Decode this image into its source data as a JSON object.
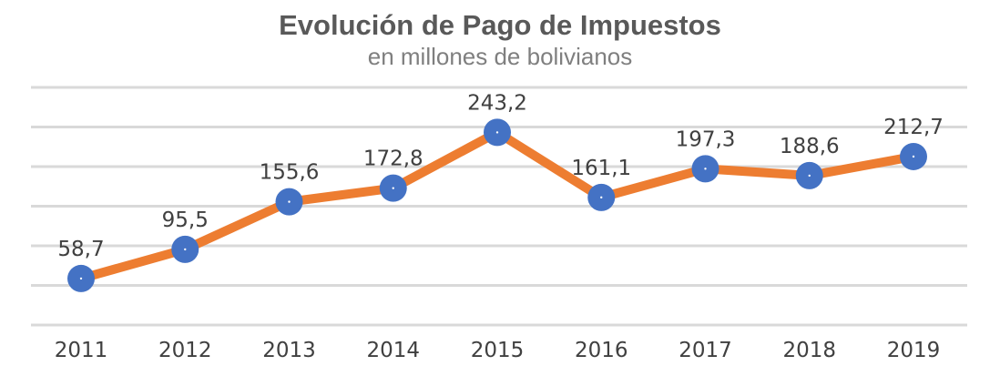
{
  "chart_data": {
    "type": "line",
    "title": "Evolución de Pago de Impuestos",
    "subtitle": "en millones de bolivianos",
    "categories": [
      "2011",
      "2012",
      "2013",
      "2014",
      "2015",
      "2016",
      "2017",
      "2018",
      "2019"
    ],
    "series": [
      {
        "values": [
          58.7,
          95.5,
          155.6,
          172.8,
          243.2,
          161.1,
          197.3,
          188.6,
          212.7
        ],
        "data_labels": [
          "58,7",
          "95,5",
          "155,6",
          "172,8",
          "243,2",
          "161,1",
          "197,3",
          "188,6",
          "212,7"
        ],
        "line_color": "#ed7d31",
        "marker_color": "#4472c4"
      }
    ],
    "ylim": [
      0,
      300
    ],
    "y_gridlines": 7,
    "y_axis_labels_shown": false,
    "legend": "none",
    "grid": true
  }
}
